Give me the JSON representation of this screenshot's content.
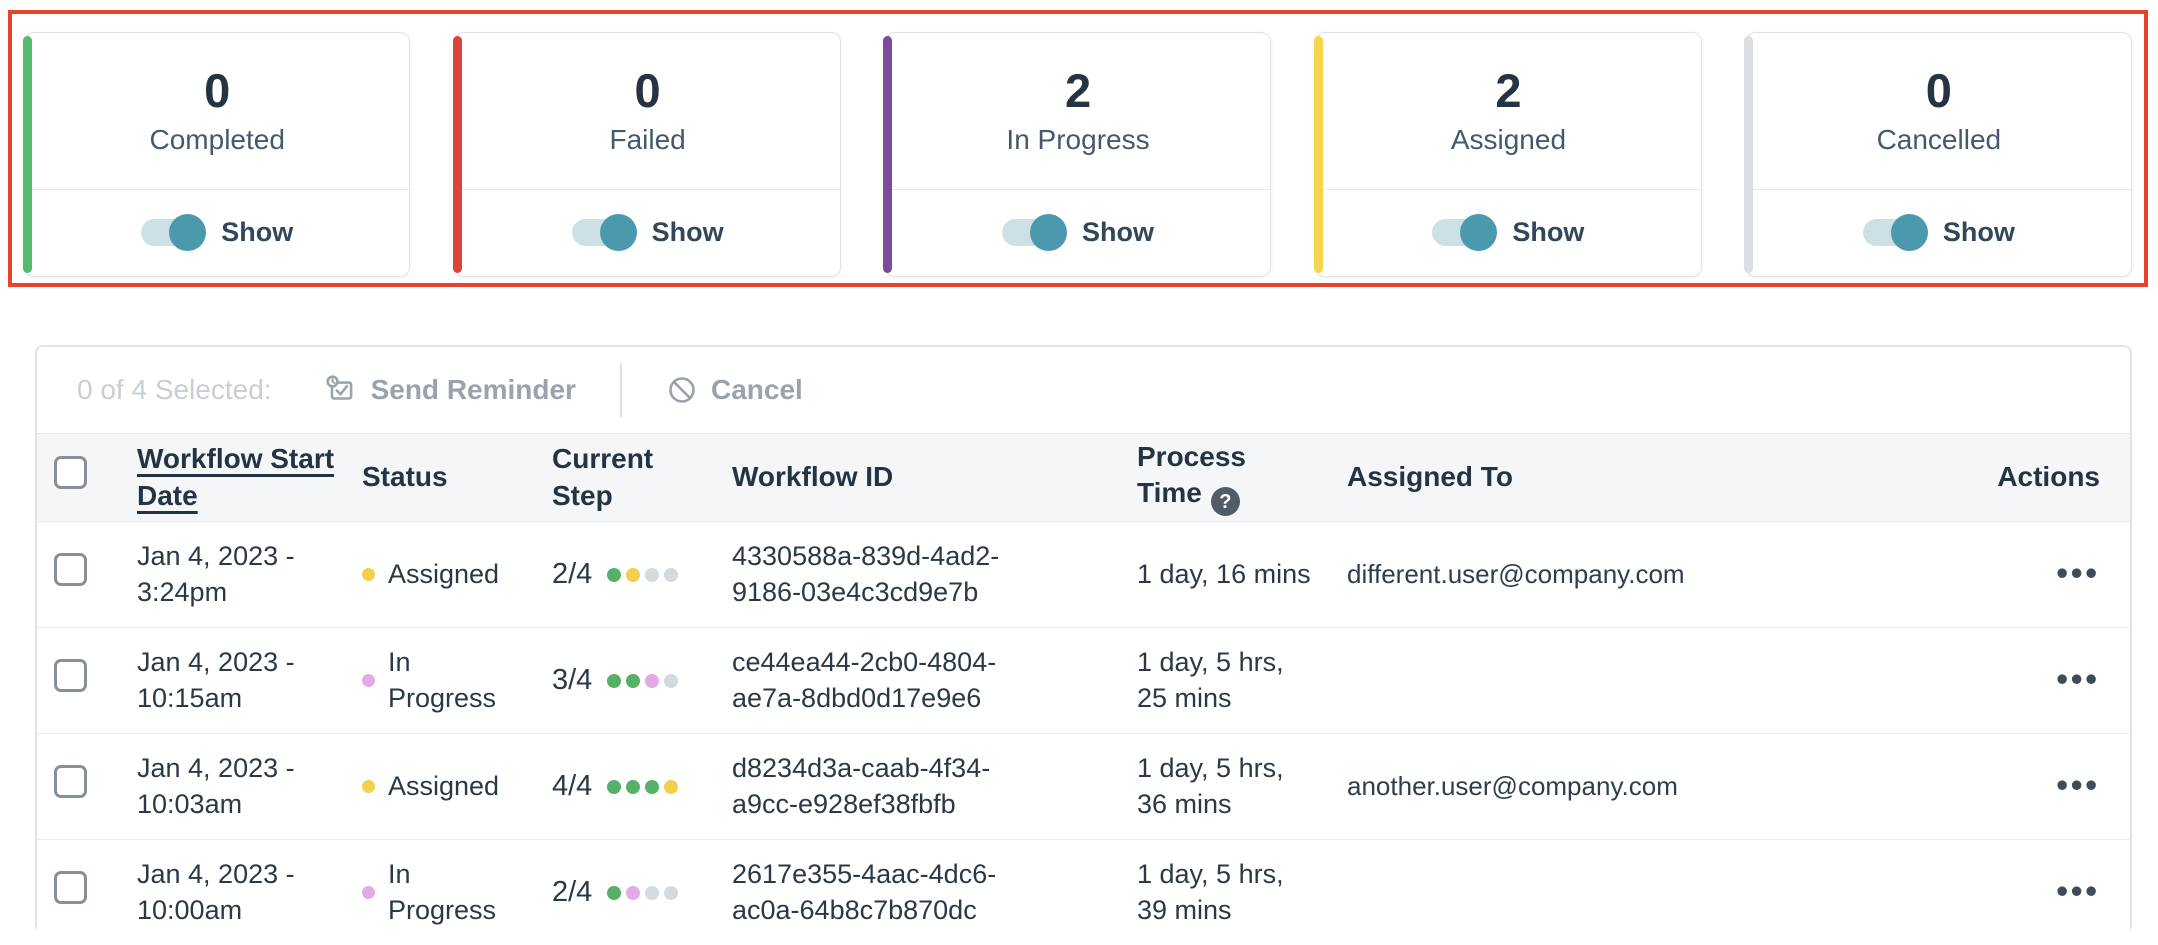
{
  "highlight_box": {
    "color": "#e8432d"
  },
  "summary_cards": {
    "toggle_label": "Show",
    "items": [
      {
        "count": "0",
        "label": "Completed",
        "accent": "#55b96e",
        "toggle_on": true
      },
      {
        "count": "0",
        "label": "Failed",
        "accent": "#d9453a",
        "toggle_on": true
      },
      {
        "count": "2",
        "label": "In Progress",
        "accent": "#7e4b9c",
        "toggle_on": true
      },
      {
        "count": "2",
        "label": "Assigned",
        "accent": "#f5d54d",
        "toggle_on": true
      },
      {
        "count": "0",
        "label": "Cancelled",
        "accent": "#dcdfe2",
        "toggle_on": true
      }
    ]
  },
  "toolbar": {
    "selection_status": "0 of 4 Selected:",
    "send_reminder_label": "Send Reminder",
    "cancel_label": "Cancel"
  },
  "table": {
    "headers": {
      "workflow_start_date": "Workflow Start Date",
      "status": "Status",
      "current_step": "Current Step",
      "workflow_id": "Workflow ID",
      "process_time": "Process Time",
      "process_time_help_glyph": "?",
      "assigned_to": "Assigned To",
      "actions": "Actions"
    },
    "actions_glyph": "•••",
    "step_dot_palette": {
      "green": "#57b06a",
      "yellow": "#f2d04c",
      "purple": "#e2abe6",
      "gray": "#d5dadf"
    },
    "rows": [
      {
        "checked": false,
        "date": "Jan 4, 2023 - 3:24pm",
        "status": "Assigned",
        "status_color": "#f2d04c",
        "step": "2/4",
        "step_dots": [
          "#57b06a",
          "#f2d04c",
          "#d5dadf",
          "#d5dadf"
        ],
        "workflow_id": "4330588a-839d-4ad2-9186-03e4c3cd9e7b",
        "process_time": "1 day, 16 mins",
        "assigned_to": "different.user@company.com"
      },
      {
        "checked": false,
        "date": "Jan 4, 2023 - 10:15am",
        "status": "In Progress",
        "status_color": "#e2abe6",
        "step": "3/4",
        "step_dots": [
          "#57b06a",
          "#57b06a",
          "#e2abe6",
          "#d5dadf"
        ],
        "workflow_id": "ce44ea44-2cb0-4804-ae7a-8dbd0d17e9e6",
        "process_time": "1 day, 5 hrs, 25 mins",
        "assigned_to": ""
      },
      {
        "checked": false,
        "date": "Jan 4, 2023 - 10:03am",
        "status": "Assigned",
        "status_color": "#f2d04c",
        "step": "4/4",
        "step_dots": [
          "#57b06a",
          "#57b06a",
          "#57b06a",
          "#f2d04c"
        ],
        "workflow_id": "d8234d3a-caab-4f34-a9cc-e928ef38fbfb",
        "process_time": "1 day, 5 hrs, 36 mins",
        "assigned_to": "another.user@company.com"
      },
      {
        "checked": false,
        "date": "Jan 4, 2023 - 10:00am",
        "status": "In Progress",
        "status_color": "#e2abe6",
        "step": "2/4",
        "step_dots": [
          "#57b06a",
          "#e2abe6",
          "#d5dadf",
          "#d5dadf"
        ],
        "workflow_id": "2617e355-4aac-4dc6-ac0a-64b8c7b870dc",
        "process_time": "1 day, 5 hrs, 39 mins",
        "assigned_to": ""
      }
    ]
  }
}
